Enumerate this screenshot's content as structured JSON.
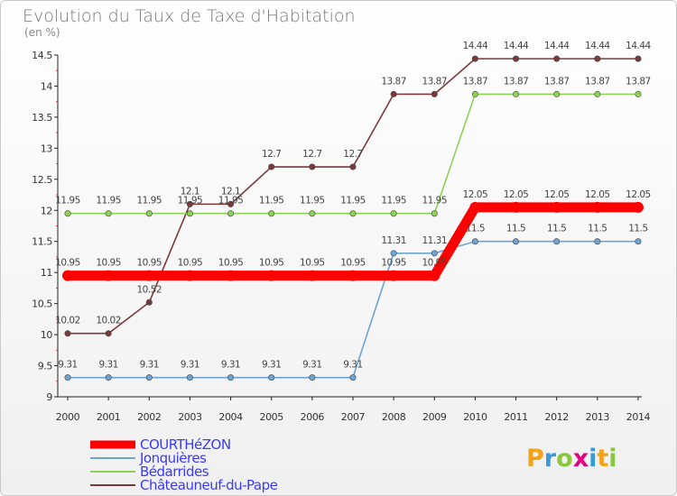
{
  "chart_data": {
    "type": "line",
    "title": "Evolution du Taux de Taxe d'Habitation",
    "subtitle": "(en %)",
    "x": [
      "2000",
      "2001",
      "2002",
      "2003",
      "2004",
      "2005",
      "2006",
      "2007",
      "2008",
      "2009",
      "2010",
      "2011",
      "2012",
      "2013",
      "2014"
    ],
    "ylim": [
      9,
      14.5
    ],
    "yticks": [
      "9",
      "9.5",
      "10",
      "10.5",
      "11",
      "11.5",
      "12",
      "12.5",
      "13",
      "13.5",
      "14",
      "14.5"
    ],
    "grid": false,
    "legend_position": "bottom-left",
    "series": [
      {
        "name": "COURTHéZON",
        "color": "#ff0000",
        "values": [
          10.95,
          10.95,
          10.95,
          10.95,
          10.95,
          10.95,
          10.95,
          10.95,
          10.95,
          10.95,
          12.05,
          12.05,
          12.05,
          12.05,
          12.05
        ],
        "labels": [
          "10.95",
          "10.95",
          "10.95",
          "10.95",
          "10.95",
          "10.95",
          "10.95",
          "10.95",
          "10.95",
          "10.95",
          "12.05",
          "12.05",
          "12.05",
          "12.05",
          "12.05"
        ]
      },
      {
        "name": "Jonquières",
        "color": "#6fa3d2",
        "values": [
          9.31,
          9.31,
          9.31,
          9.31,
          9.31,
          9.31,
          9.31,
          9.31,
          11.31,
          11.31,
          11.5,
          11.5,
          11.5,
          11.5,
          11.5
        ],
        "labels": [
          "9.31",
          "9.31",
          "9.31",
          "9.31",
          "9.31",
          "9.31",
          "9.31",
          "9.31",
          "11.31",
          "11.31",
          "11.5",
          "11.5",
          "11.5",
          "11.5",
          "11.5"
        ]
      },
      {
        "name": "Bédarrides",
        "color": "#8fd158",
        "values": [
          11.95,
          11.95,
          11.95,
          11.95,
          11.95,
          11.95,
          11.95,
          11.95,
          11.95,
          11.95,
          13.87,
          13.87,
          13.87,
          13.87,
          13.87
        ],
        "labels": [
          "11.95",
          "11.95",
          "11.95",
          "11.95",
          "11.95",
          "11.95",
          "11.95",
          "11.95",
          "11.95",
          "11.95",
          "13.87",
          "13.87",
          "13.87",
          "13.87",
          "13.87"
        ]
      },
      {
        "name": "Châteauneuf-du-Pape",
        "color": "#7a3a3a",
        "values": [
          10.02,
          10.02,
          10.52,
          12.1,
          12.1,
          12.7,
          12.7,
          12.7,
          13.87,
          13.87,
          14.44,
          14.44,
          14.44,
          14.44,
          14.44
        ],
        "labels": [
          "10.02",
          "10.02",
          "10.52",
          "12.1",
          "12.1",
          "12.7",
          "12.7",
          "12.7",
          "13.87",
          "13.87",
          "14.44",
          "14.44",
          "14.44",
          "14.44",
          "14.44"
        ]
      }
    ]
  },
  "brand": {
    "letters": [
      "P",
      "r",
      "o",
      "x",
      "i",
      "t",
      "i"
    ],
    "colors": [
      "#f3a21b",
      "#3a9ad9",
      "#8cc63e",
      "#e5007e",
      "#3a9ad9",
      "#f3a21b",
      "#8cc63e"
    ]
  },
  "legend_text_color": "#3a3aff"
}
